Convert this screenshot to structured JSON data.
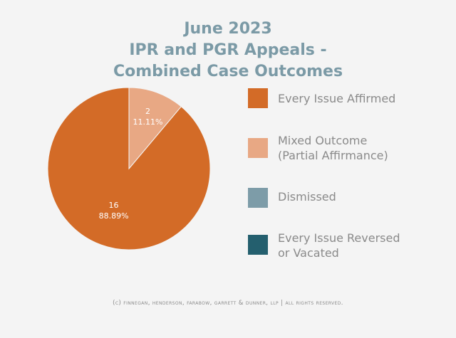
{
  "title_lines": [
    "June 2023",
    "IPR and PGR Appeals -",
    "Combined Case Outcomes"
  ],
  "footer": "(c) finnegan, henderson, farabow, garrett & dunner, llp | all rights reserved.",
  "chart_data": {
    "type": "pie",
    "title": "June 2023 IPR and PGR Appeals - Combined Case Outcomes",
    "slices": [
      {
        "label": "Every Issue Affirmed",
        "value": 16,
        "percent": "88.89%",
        "color": "#d36b27"
      },
      {
        "label": "Mixed Outcome\n(Partial Affirmance)",
        "value": 2,
        "percent": "11.11%",
        "color": "#e8a884"
      },
      {
        "label": "Dismissed",
        "value": 0,
        "percent": "0%",
        "color": "#7d9ca8"
      },
      {
        "label": "Every Issue Reversed\nor Vacated",
        "value": 0,
        "percent": "0%",
        "color": "#245f6e"
      }
    ],
    "legend_position": "right"
  }
}
